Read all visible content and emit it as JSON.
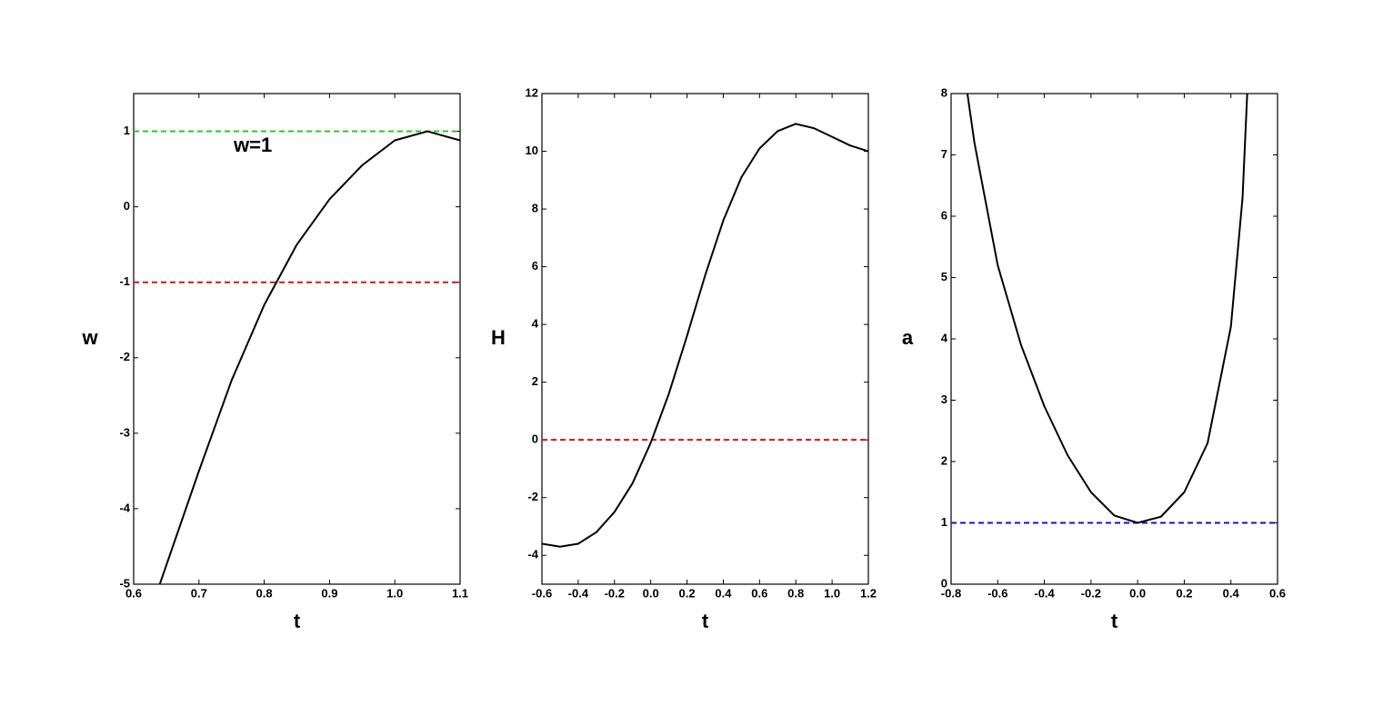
{
  "chart_data": [
    {
      "type": "line",
      "xlabel": "t",
      "ylabel": "w",
      "annotation": "w=1",
      "x": [
        0.64,
        0.7,
        0.75,
        0.8,
        0.85,
        0.9,
        0.95,
        1.0,
        1.05,
        1.1
      ],
      "series": [
        {
          "color": "#000000",
          "values": [
            -5,
            -3.5,
            -2.3,
            -1.3,
            -0.5,
            0.1,
            0.55,
            0.88,
            1.0,
            0.88
          ]
        }
      ],
      "hlines": [
        {
          "value": 1,
          "color": "#22cc22"
        },
        {
          "value": -1,
          "color": "#dd1111"
        }
      ],
      "xlim": [
        0.6,
        1.1
      ],
      "ylim": [
        -5,
        1.5
      ],
      "xticks": [
        0.6,
        0.7,
        0.8,
        0.9,
        {
          "value": 1,
          "label": "1.0"
        },
        1.1
      ],
      "yticks": [
        -5,
        -4,
        -3,
        -2,
        -1,
        0,
        1
      ]
    },
    {
      "type": "line",
      "xlabel": "t",
      "ylabel": "H",
      "x": [
        -0.6,
        -0.5,
        -0.4,
        -0.3,
        -0.2,
        -0.1,
        0,
        0.1,
        0.2,
        0.3,
        0.4,
        0.5,
        0.6,
        0.7,
        0.8,
        0.9,
        1.0,
        1.1,
        1.2
      ],
      "series": [
        {
          "color": "#000000",
          "values": [
            -3.6,
            -3.7,
            -3.6,
            -3.2,
            -2.5,
            -1.5,
            -0.1,
            1.6,
            3.6,
            5.7,
            7.6,
            9.1,
            10.1,
            10.7,
            10.95,
            10.8,
            10.5,
            10.2,
            10.0
          ]
        }
      ],
      "hlines": [
        {
          "value": 0,
          "color": "#dd1111"
        }
      ],
      "xlim": [
        -0.6,
        1.2
      ],
      "ylim": [
        -5,
        12
      ],
      "xticks": [
        -0.6,
        -0.4,
        -0.2,
        {
          "value": 0,
          "label": "0.0"
        },
        0.2,
        0.4,
        0.6,
        0.8,
        {
          "value": 1,
          "label": "1.0"
        },
        1.2
      ],
      "yticks": [
        -4,
        -2,
        0,
        2,
        4,
        6,
        8,
        10,
        12
      ]
    },
    {
      "type": "line",
      "xlabel": "t",
      "ylabel": "a",
      "x": [
        -0.73,
        -0.7,
        -0.6,
        -0.5,
        -0.4,
        -0.3,
        -0.2,
        -0.1,
        0,
        0.1,
        0.2,
        0.3,
        0.4,
        0.45,
        0.47
      ],
      "series": [
        {
          "color": "#000000",
          "values": [
            8,
            7.2,
            5.2,
            3.9,
            2.9,
            2.1,
            1.5,
            1.12,
            1.0,
            1.1,
            1.5,
            2.3,
            4.2,
            6.3,
            8
          ]
        }
      ],
      "hlines": [
        {
          "value": 1,
          "color": "#1111cc"
        }
      ],
      "xlim": [
        -0.8,
        0.6
      ],
      "ylim": [
        0,
        8
      ],
      "xticks": [
        -0.8,
        -0.6,
        -0.4,
        -0.2,
        {
          "value": 0,
          "label": "0.0"
        },
        0.2,
        0.4,
        0.6
      ],
      "yticks": [
        0,
        1,
        2,
        3,
        4,
        5,
        6,
        7,
        8
      ]
    }
  ]
}
